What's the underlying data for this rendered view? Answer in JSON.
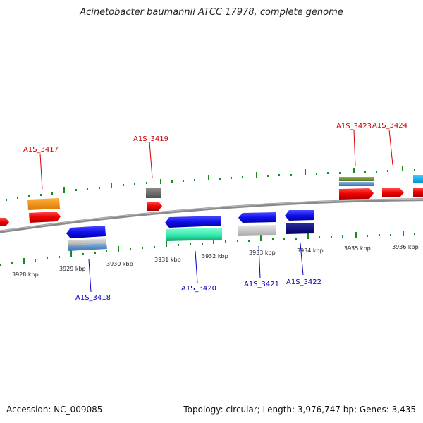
{
  "title": "Acinetobacter baumannii ATCC 17978, complete genome",
  "footer": {
    "accession": "Accession: NC_009085",
    "info": "Topology: circular; Length: 3,976,747 bp; Genes: 3,435"
  },
  "colors": {
    "backbone": "#8a8a8a",
    "tick": "#1a8a1a",
    "forward_label": "#d00000",
    "reverse_label": "#0000c0"
  },
  "scale_labels": [
    "3928 kbp",
    "3929 kbp",
    "3930 kbp",
    "3931 kbp",
    "3932 kbp",
    "3933 kbp",
    "3934 kbp",
    "3935 kbp",
    "3936 kbp"
  ],
  "gene_labels": {
    "forward": [
      "A1S_3417",
      "A1S_3419",
      "A1S_3423",
      "A1S_3424"
    ],
    "reverse": [
      "A1S_3418",
      "A1S_3420",
      "A1S_3421",
      "A1S_3422"
    ]
  }
}
